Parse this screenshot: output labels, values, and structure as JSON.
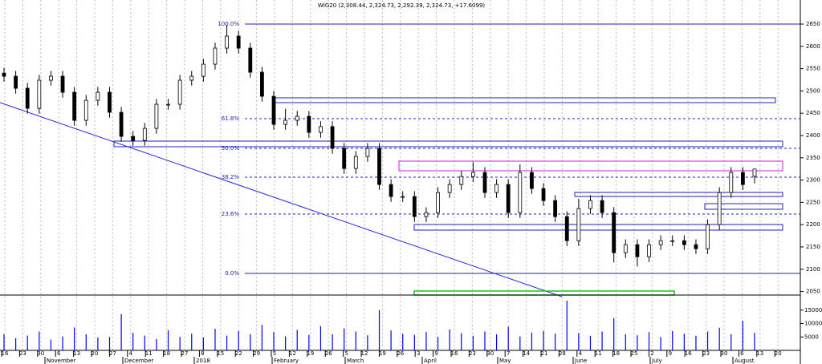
{
  "chart_data": [
    {
      "type": "candlestick",
      "title": "WIG20 (2,308.44, 2,324.73, 2,292.39, 2,324.73, +17.6099)",
      "open": [
        2540,
        2533,
        2506,
        2461,
        2524,
        2533,
        2497,
        2434,
        2479,
        2497,
        2452,
        2398,
        2389,
        2416,
        2470,
        2470,
        2524,
        2533,
        2560,
        2596,
        2623,
        2596,
        2542,
        2488,
        2425,
        2434,
        2443,
        2407,
        2420,
        2371,
        2326,
        2353,
        2371,
        2290,
        2263,
        2263,
        2218,
        2227,
        2272,
        2290,
        2308,
        2317,
        2272,
        2290,
        2227,
        2317,
        2281,
        2254,
        2218,
        2164,
        2236,
        2254,
        2227,
        2137,
        2155,
        2128,
        2155,
        2164,
        2164,
        2155,
        2146,
        2200,
        2272,
        2317,
        2308.44
      ],
      "high": [
        2552,
        2545,
        2518,
        2536,
        2545,
        2545,
        2509,
        2491,
        2509,
        2509,
        2464,
        2410,
        2428,
        2482,
        2482,
        2536,
        2545,
        2572,
        2608,
        2648,
        2635,
        2608,
        2554,
        2500,
        2460,
        2455,
        2455,
        2432,
        2432,
        2383,
        2365,
        2383,
        2383,
        2302,
        2275,
        2275,
        2239,
        2284,
        2302,
        2320,
        2340,
        2329,
        2302,
        2302,
        2335,
        2329,
        2293,
        2266,
        2230,
        2258,
        2266,
        2266,
        2239,
        2167,
        2167,
        2167,
        2176,
        2176,
        2176,
        2167,
        2212,
        2284,
        2329,
        2329,
        2324.73
      ],
      "low": [
        2521,
        2494,
        2449,
        2449,
        2512,
        2485,
        2422,
        2422,
        2467,
        2440,
        2386,
        2377,
        2377,
        2404,
        2458,
        2458,
        2512,
        2521,
        2548,
        2584,
        2584,
        2530,
        2476,
        2413,
        2413,
        2422,
        2395,
        2395,
        2359,
        2314,
        2314,
        2341,
        2278,
        2251,
        2251,
        2206,
        2206,
        2215,
        2260,
        2278,
        2296,
        2260,
        2260,
        2215,
        2215,
        2269,
        2242,
        2206,
        2152,
        2152,
        2224,
        2215,
        2115,
        2125,
        2106,
        2116,
        2143,
        2152,
        2143,
        2134,
        2134,
        2188,
        2260,
        2278,
        2292.39
      ],
      "close": [
        2533,
        2506,
        2461,
        2524,
        2533,
        2497,
        2434,
        2479,
        2497,
        2452,
        2398,
        2389,
        2416,
        2470,
        2470,
        2524,
        2533,
        2560,
        2596,
        2623,
        2596,
        2542,
        2488,
        2425,
        2434,
        2443,
        2407,
        2420,
        2371,
        2326,
        2353,
        2371,
        2290,
        2263,
        2263,
        2218,
        2227,
        2272,
        2290,
        2308,
        2317,
        2272,
        2290,
        2227,
        2317,
        2281,
        2254,
        2218,
        2164,
        2236,
        2254,
        2227,
        2137,
        2155,
        2128,
        2155,
        2164,
        2164,
        2155,
        2146,
        2200,
        2272,
        2317,
        2290,
        2324.73
      ],
      "ylim": [
        2042,
        2704
      ],
      "yticks": [
        2050,
        2100,
        2150,
        2200,
        2250,
        2300,
        2350,
        2400,
        2450,
        2500,
        2550,
        2600,
        2650
      ],
      "fib_labels": [
        "100.0%",
        "61.8%",
        "50.0%",
        "38.2%",
        "23.6%",
        "0.0%"
      ],
      "day_labels": [
        "16",
        "23",
        "30",
        "6",
        "13",
        "20",
        "27",
        "4",
        "11",
        "18",
        "27",
        "8",
        "15",
        "22",
        "29",
        "5",
        "12",
        "19",
        "26",
        "5",
        "12",
        "19",
        "26",
        "3",
        "9",
        "16",
        "23",
        "30",
        "7",
        "14",
        "21",
        "28",
        "4",
        "11",
        "18",
        "25",
        "2",
        "9",
        "16",
        "23",
        "30",
        "6",
        "13",
        "20"
      ],
      "month_labels": [
        "November",
        "December",
        "2018",
        "February",
        "March",
        "April",
        "May",
        "June",
        "July",
        "August"
      ]
    },
    {
      "type": "bar",
      "values": [
        6000,
        4500,
        5500,
        7000,
        4000,
        5200,
        8500,
        6000,
        4800,
        5000,
        13500,
        6500,
        5500,
        4200,
        7500,
        5000,
        6200,
        4800,
        8000,
        5500,
        7200,
        6000,
        9500,
        6800,
        5200,
        7600,
        5800,
        9000,
        6000,
        8200,
        7000,
        5600,
        15000,
        7400,
        6200,
        5800,
        6800,
        5000,
        7800,
        6400,
        5400,
        7000,
        6000,
        8800,
        5200,
        6600,
        7200,
        6200,
        18500,
        6400,
        5400,
        7000,
        12000,
        6000,
        5600,
        6800,
        5000,
        7200,
        6200,
        5400,
        7000,
        8400,
        6000,
        11000,
        6500
      ],
      "color": "#0000ff",
      "ylim": [
        0,
        20000
      ],
      "yticks": [
        5000,
        10000,
        15000
      ]
    }
  ]
}
